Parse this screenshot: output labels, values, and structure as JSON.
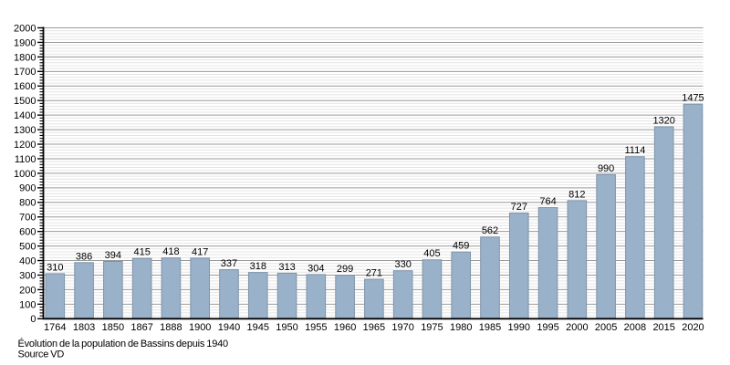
{
  "chart_data": {
    "type": "bar",
    "title": "Évolution de la population de Bassins depuis 1940",
    "source": "Source VD",
    "xlabel": "",
    "ylabel": "",
    "categories": [
      "1764",
      "1803",
      "1850",
      "1867",
      "1888",
      "1900",
      "1940",
      "1945",
      "1950",
      "1955",
      "1960",
      "1965",
      "1970",
      "1975",
      "1980",
      "1985",
      "1990",
      "1995",
      "2000",
      "2005",
      "2008",
      "2015",
      "2020"
    ],
    "values": [
      310,
      386,
      394,
      415,
      418,
      417,
      337,
      318,
      313,
      304,
      299,
      271,
      330,
      405,
      459,
      562,
      727,
      764,
      812,
      990,
      1114,
      1320,
      1475
    ],
    "ylim": [
      0,
      2000
    ],
    "y_major_step": 100,
    "y_minor_step": 20,
    "grid": "on",
    "legend": "none",
    "bar_labels_shown": true,
    "colors": {
      "bar_fill": "#9ab1ca",
      "bar_edge": "#7e93a8",
      "major_grid": "#9a9a9a",
      "minor_grid": "#e4e4e4",
      "axis": "#000000",
      "text": "#000000",
      "background": "#ffffff"
    }
  }
}
